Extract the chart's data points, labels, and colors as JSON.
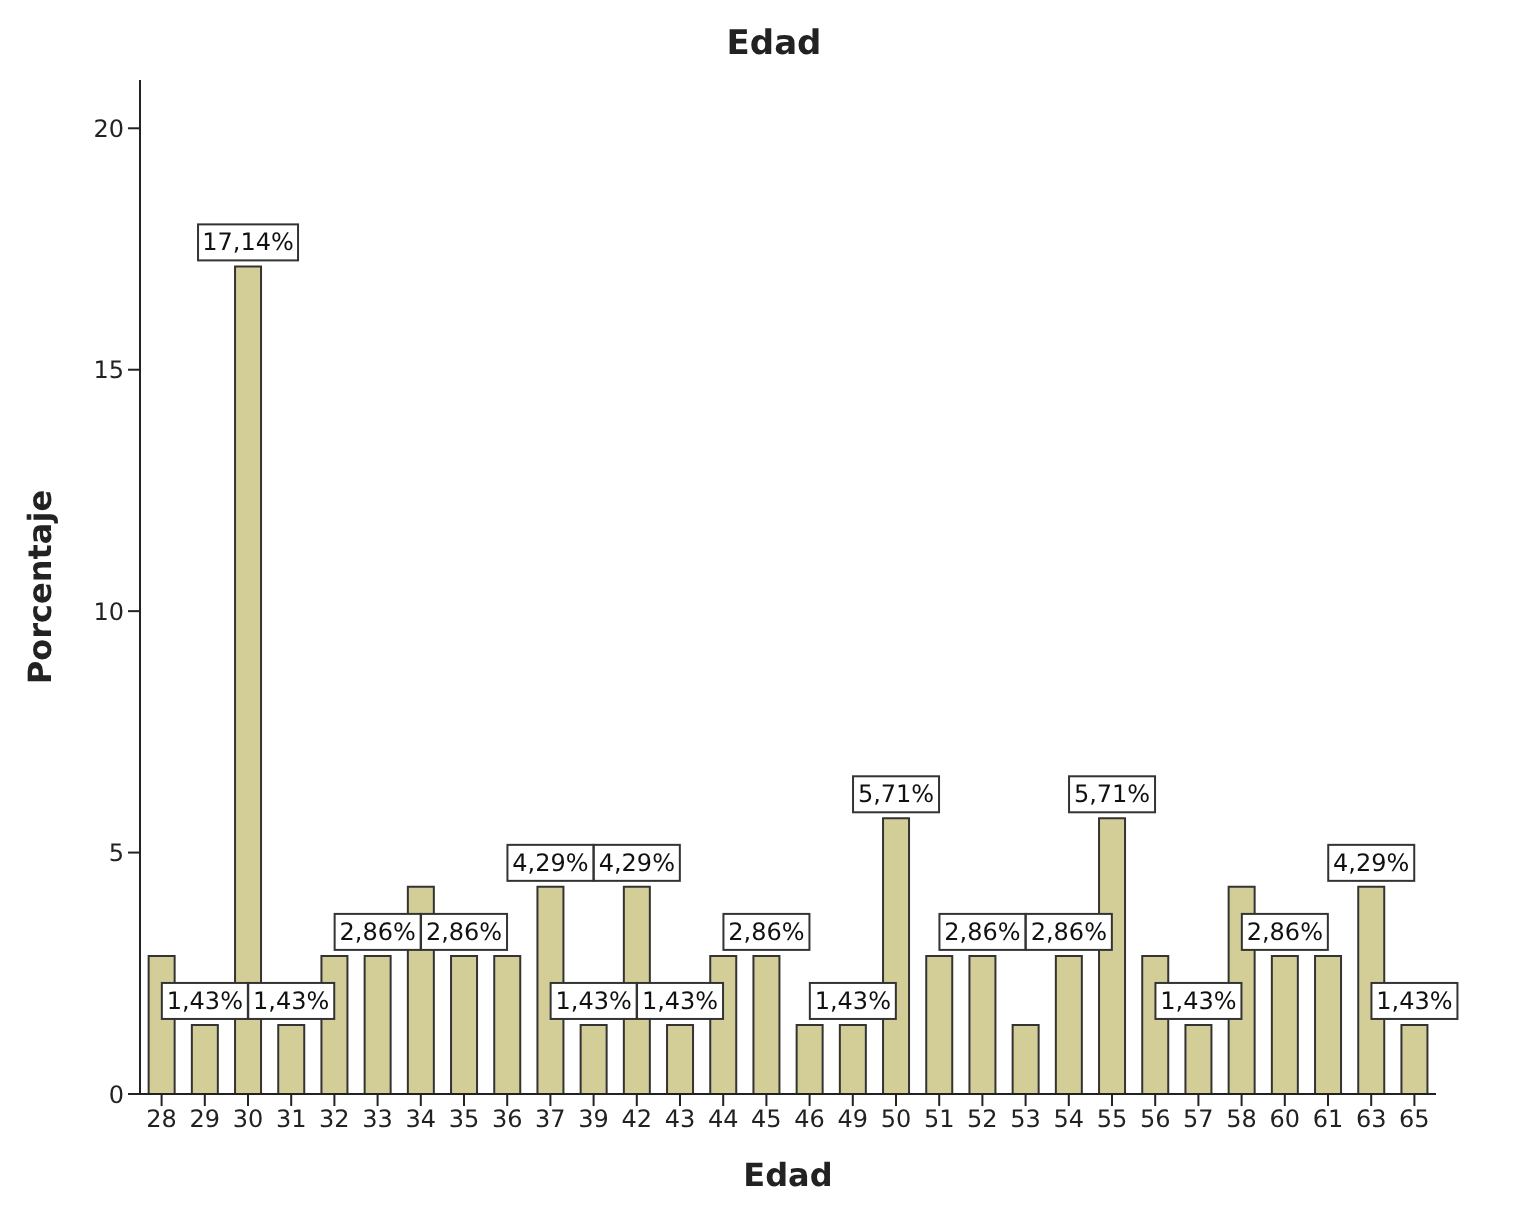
{
  "chart_data": {
    "type": "bar",
    "title": "Edad",
    "xlabel": "Edad",
    "ylabel": "Porcentaje",
    "categories": [
      "28",
      "29",
      "30",
      "31",
      "32",
      "33",
      "34",
      "35",
      "36",
      "37",
      "39",
      "42",
      "43",
      "44",
      "45",
      "46",
      "49",
      "50",
      "51",
      "52",
      "53",
      "54",
      "55",
      "56",
      "57",
      "58",
      "60",
      "61",
      "63",
      "65"
    ],
    "values": [
      2.86,
      1.43,
      17.14,
      1.43,
      2.86,
      2.86,
      4.29,
      2.86,
      2.86,
      4.29,
      1.43,
      4.29,
      1.43,
      2.86,
      2.86,
      1.43,
      1.43,
      5.71,
      2.86,
      2.86,
      1.43,
      2.86,
      5.71,
      2.86,
      1.43,
      4.29,
      2.86,
      2.86,
      4.29,
      1.43
    ],
    "value_labels": [
      null,
      "1,43%",
      "17,14%",
      "1,43%",
      null,
      "2,86%",
      null,
      "2,86%",
      null,
      "4,29%",
      "1,43%",
      "4,29%",
      "1,43%",
      null,
      "2,86%",
      null,
      "1,43%",
      "5,71%",
      null,
      "2,86%",
      null,
      "2,86%",
      "5,71%",
      null,
      "1,43%",
      null,
      "2,86%",
      null,
      "4,29%",
      "1,43%"
    ],
    "color": "#d3ce97",
    "ylim": [
      0,
      21
    ],
    "yticks": [
      0,
      5,
      10,
      15,
      20
    ]
  }
}
